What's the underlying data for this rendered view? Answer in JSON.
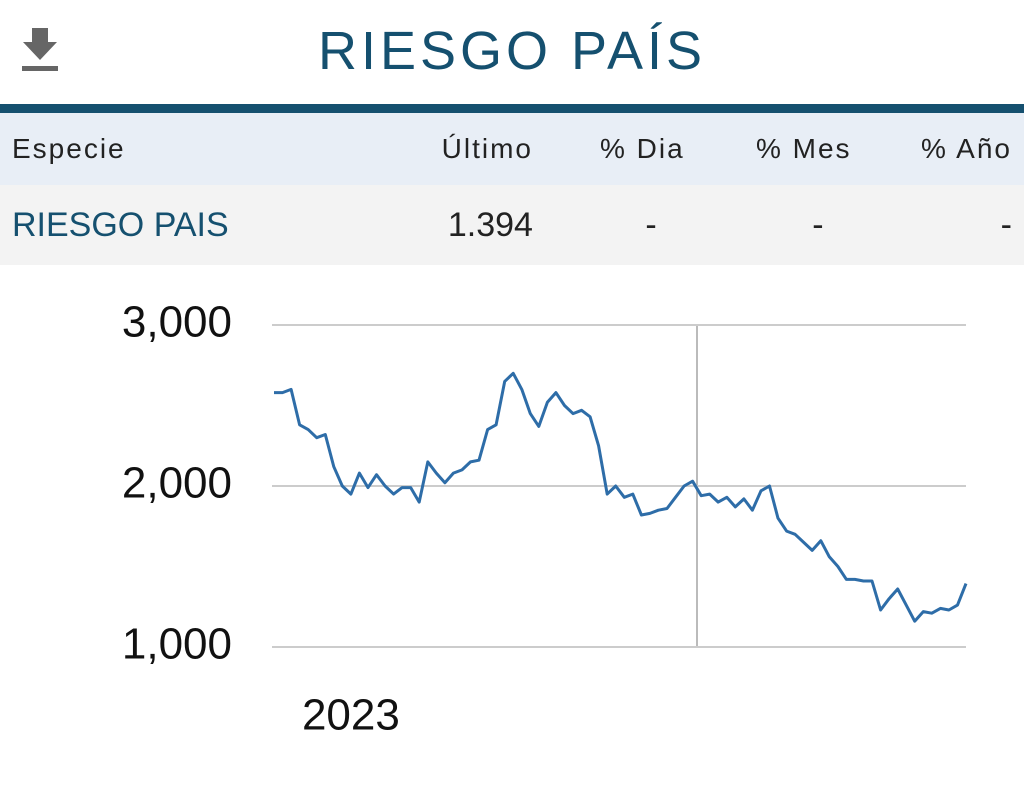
{
  "header": {
    "title": "RIESGO PAÍS"
  },
  "table": {
    "columns": [
      "Especie",
      "Último",
      "% Dia",
      "% Mes",
      "% Año"
    ],
    "rows": [
      [
        "RIESGO PAIS",
        "1.394",
        "-",
        "-",
        "-"
      ]
    ]
  },
  "chart_data": {
    "type": "line",
    "categories": [
      null,
      null,
      null,
      null,
      null,
      null,
      null,
      null,
      null,
      "2023",
      null,
      null,
      null,
      null,
      null,
      null,
      null,
      null,
      null,
      null,
      null,
      null,
      null,
      null,
      null,
      null,
      null,
      null,
      null,
      null,
      null,
      null,
      null,
      null,
      null,
      null,
      null,
      null,
      null,
      null,
      null,
      null,
      null,
      null,
      null,
      null,
      null,
      null,
      null,
      null,
      null,
      null,
      null,
      null,
      null,
      null,
      null,
      null,
      null,
      null,
      null,
      null,
      null,
      null,
      null,
      null,
      null,
      null,
      null,
      null,
      null,
      null,
      null,
      null,
      null,
      null,
      null,
      null,
      null,
      null,
      null,
      null
    ],
    "series": [
      {
        "color": "#2e6da8",
        "values": [
          2580,
          2580,
          2600,
          2380,
          2350,
          2300,
          2320,
          2120,
          2000,
          1950,
          2080,
          1990,
          2070,
          2000,
          1950,
          1990,
          1990,
          1900,
          2150,
          2080,
          2020,
          2080,
          2100,
          2150,
          2160,
          2350,
          2380,
          2650,
          2700,
          2600,
          2450,
          2370,
          2520,
          2580,
          2500,
          2450,
          2470,
          2430,
          2250,
          1950,
          2000,
          1930,
          1950,
          1820,
          1830,
          1850,
          1860,
          1930,
          2000,
          2030,
          1940,
          1950,
          1900,
          1930,
          1870,
          1920,
          1850,
          1970,
          2000,
          1800,
          1720,
          1700,
          1650,
          1600,
          1660,
          1560,
          1500,
          1420,
          1420,
          1410,
          1410,
          1230,
          1300,
          1360,
          1260,
          1160,
          1220,
          1210,
          1240,
          1230,
          1260,
          1394
        ]
      }
    ],
    "ylim": [
      1000,
      3000
    ],
    "yticks": [
      {
        "value": 1000,
        "label": "1,000"
      },
      {
        "value": 2000,
        "label": "2,000"
      },
      {
        "value": 3000,
        "label": "3,000"
      }
    ],
    "grid": true
  }
}
